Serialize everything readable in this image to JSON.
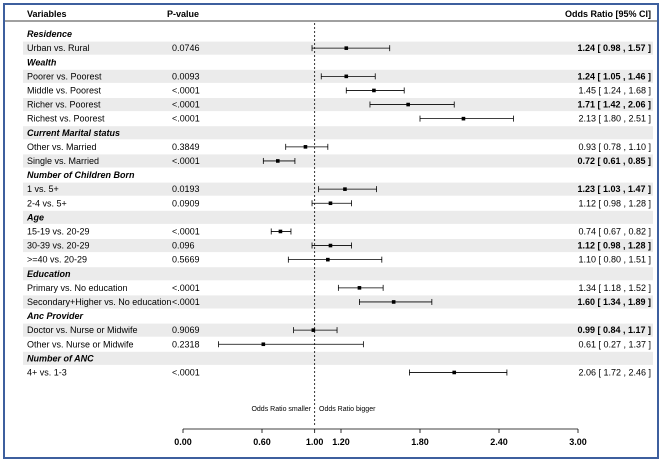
{
  "chart_data": {
    "type": "forest",
    "headers": {
      "variables": "Variables",
      "pvalue": "P-value",
      "or": "Odds Ratio [95% CI]"
    },
    "x_ticks": [
      "0.00",
      "0.60",
      "1.00",
      "1.20",
      "1.80",
      "2.40",
      "3.00"
    ],
    "xlim": [
      0,
      3
    ],
    "reference_line": 1.0,
    "annotation_left": "Odds Ratio smaller",
    "annotation_right": "Odds Ratio bigger",
    "rows": [
      {
        "kind": "group",
        "label": "Residence"
      },
      {
        "kind": "item",
        "label": "Urban vs. Rural",
        "p": "0.0746",
        "or": 1.24,
        "lo": 0.98,
        "hi": 1.57,
        "ci_text": "1.24 [ 0.98 , 1.57 ]",
        "bold": true
      },
      {
        "kind": "group",
        "label": "Wealth"
      },
      {
        "kind": "item",
        "label": "Poorer vs. Poorest",
        "p": "0.0093",
        "or": 1.24,
        "lo": 1.05,
        "hi": 1.46,
        "ci_text": "1.24 [ 1.05 , 1.46 ]",
        "bold": true
      },
      {
        "kind": "item",
        "label": "Middle vs. Poorest",
        "p": "<.0001",
        "or": 1.45,
        "lo": 1.24,
        "hi": 1.68,
        "ci_text": "1.45 [ 1.24 , 1.68 ]",
        "bold": false
      },
      {
        "kind": "item",
        "label": "Richer vs. Poorest",
        "p": "<.0001",
        "or": 1.71,
        "lo": 1.42,
        "hi": 2.06,
        "ci_text": "1.71 [ 1.42 , 2.06 ]",
        "bold": true
      },
      {
        "kind": "item",
        "label": "Richest vs. Poorest",
        "p": "<.0001",
        "or": 2.13,
        "lo": 1.8,
        "hi": 2.51,
        "ci_text": "2.13 [ 1.80 , 2.51 ]",
        "bold": false
      },
      {
        "kind": "group",
        "label": "Current Marital status"
      },
      {
        "kind": "item",
        "label": "Other vs. Married",
        "p": "0.3849",
        "or": 0.93,
        "lo": 0.78,
        "hi": 1.1,
        "ci_text": "0.93 [ 0.78 , 1.10 ]",
        "bold": false
      },
      {
        "kind": "item",
        "label": "Single vs. Married",
        "p": "<.0001",
        "or": 0.72,
        "lo": 0.61,
        "hi": 0.85,
        "ci_text": "0.72 [ 0.61 , 0.85 ]",
        "bold": true
      },
      {
        "kind": "group",
        "label": "Number of Children Born"
      },
      {
        "kind": "item",
        "label": "1 vs. 5+",
        "p": "0.0193",
        "or": 1.23,
        "lo": 1.03,
        "hi": 1.47,
        "ci_text": "1.23 [ 1.03 , 1.47 ]",
        "bold": true
      },
      {
        "kind": "item",
        "label": "2-4 vs. 5+",
        "p": "0.0909",
        "or": 1.12,
        "lo": 0.98,
        "hi": 1.28,
        "ci_text": "1.12 [ 0.98 , 1.28 ]",
        "bold": false
      },
      {
        "kind": "group",
        "label": "Age"
      },
      {
        "kind": "item",
        "label": "15-19 vs. 20-29",
        "p": "<.0001",
        "or": 0.74,
        "lo": 0.67,
        "hi": 0.82,
        "ci_text": "0.74 [ 0.67 , 0.82 ]",
        "bold": false
      },
      {
        "kind": "item",
        "label": "30-39 vs. 20-29",
        "p": "0.096",
        "or": 1.12,
        "lo": 0.98,
        "hi": 1.28,
        "ci_text": "1.12 [ 0.98 , 1.28 ]",
        "bold": true
      },
      {
        "kind": "item",
        "label": ">=40 vs. 20-29",
        "p": "0.5669",
        "or": 1.1,
        "lo": 0.8,
        "hi": 1.51,
        "ci_text": "1.10 [ 0.80 , 1.51 ]",
        "bold": false
      },
      {
        "kind": "group",
        "label": "Education"
      },
      {
        "kind": "item",
        "label": "Primary vs. No education",
        "p": "<.0001",
        "or": 1.34,
        "lo": 1.18,
        "hi": 1.52,
        "ci_text": "1.34 [ 1.18 , 1.52 ]",
        "bold": false
      },
      {
        "kind": "item",
        "label": "Secondary+Higher vs. No education",
        "p": "<.0001",
        "or": 1.6,
        "lo": 1.34,
        "hi": 1.89,
        "ci_text": "1.60 [ 1.34 , 1.89 ]",
        "bold": true
      },
      {
        "kind": "group",
        "label": "Anc Provider"
      },
      {
        "kind": "item",
        "label": "Doctor vs. Nurse or Midwife",
        "p": "0.9069",
        "or": 0.99,
        "lo": 0.84,
        "hi": 1.17,
        "ci_text": "0.99 [ 0.84 , 1.17 ]",
        "bold": true
      },
      {
        "kind": "item",
        "label": "Other vs. Nurse or Midwife",
        "p": "0.2318",
        "or": 0.61,
        "lo": 0.27,
        "hi": 1.37,
        "ci_text": "0.61 [ 0.27 , 1.37 ]",
        "bold": false
      },
      {
        "kind": "group",
        "label": "Number of ANC"
      },
      {
        "kind": "item",
        "label": "4+ vs. 1-3",
        "p": "<.0001",
        "or": 2.06,
        "lo": 1.72,
        "hi": 2.46,
        "ci_text": "2.06 [ 1.72 , 2.46 ]",
        "bold": false
      }
    ],
    "colors": {
      "shade": "#ebebeb",
      "border": "#3d5f9e",
      "ink": "#000000"
    }
  }
}
